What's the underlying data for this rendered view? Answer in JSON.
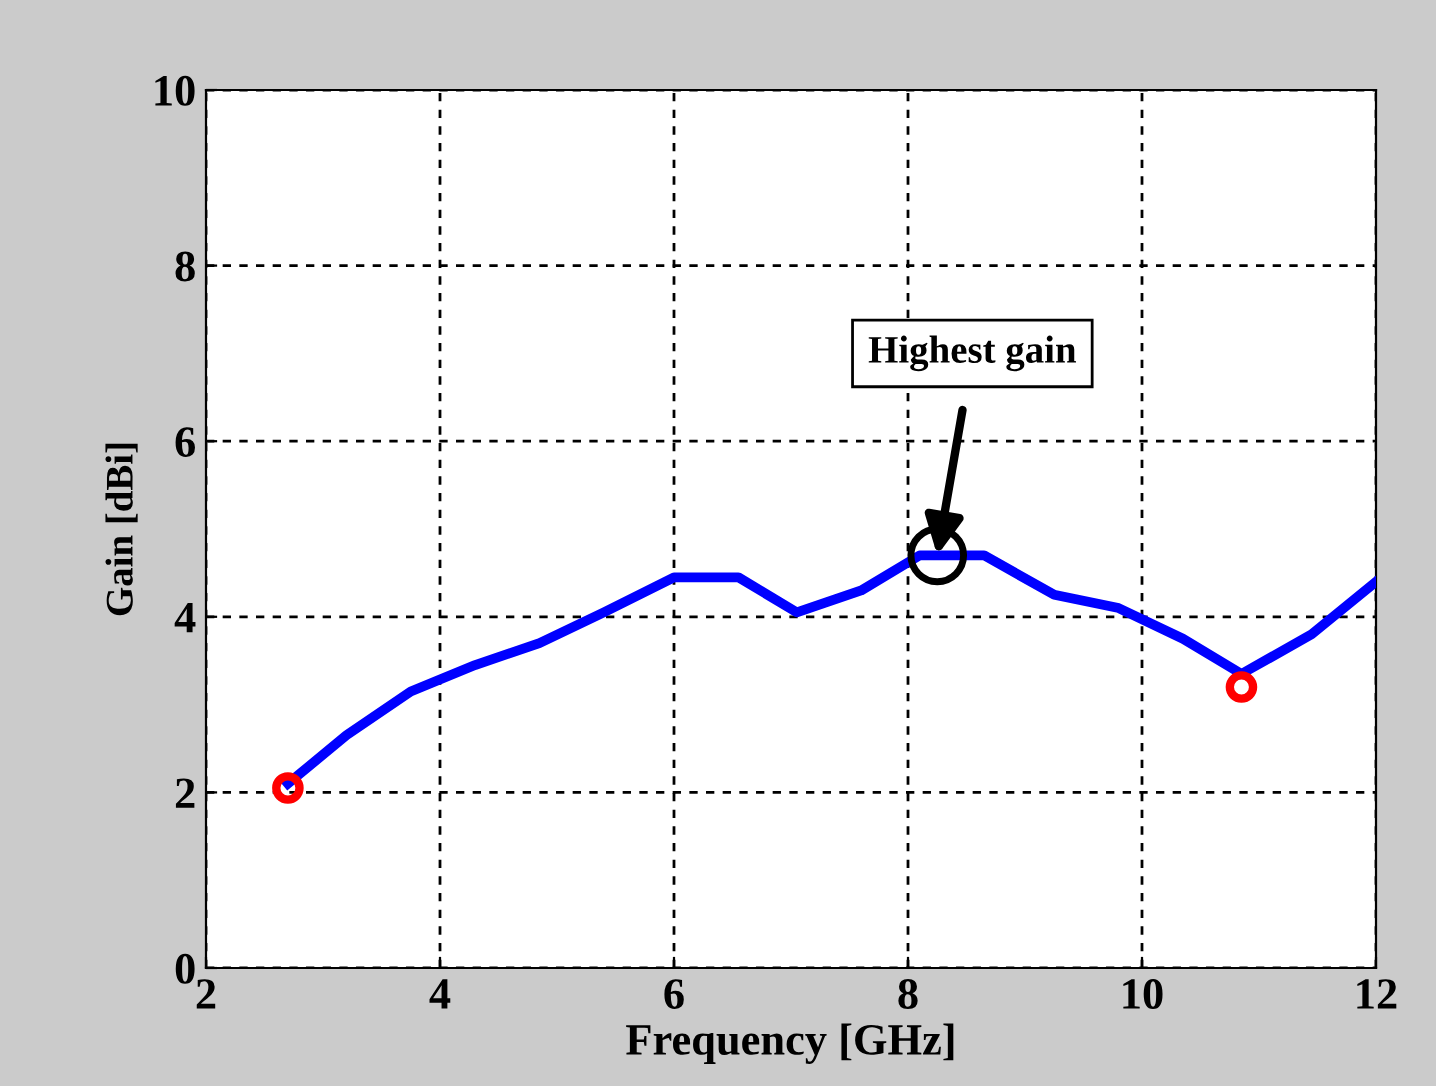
{
  "chart_data": {
    "type": "line",
    "xlabel": "Frequency [GHz]",
    "ylabel": "Gain [dBi]",
    "xlim": [
      2,
      12
    ],
    "xticks": [
      2,
      4,
      6,
      8,
      10,
      12
    ],
    "ylim": [
      0,
      10
    ],
    "yticks": [
      0,
      2,
      4,
      6,
      8,
      10
    ],
    "grid": true,
    "line_style": "solid",
    "series": [
      {
        "color": "#0000ff",
        "x": [
          2.7,
          3.2,
          3.75,
          4.3,
          4.85,
          5.4,
          6.0,
          6.55,
          7.05,
          7.6,
          8.1,
          8.65,
          9.25,
          9.8,
          10.35,
          10.85,
          11.45,
          12.0
        ],
        "values": [
          2.1,
          2.65,
          3.15,
          3.45,
          3.7,
          4.05,
          4.45,
          4.45,
          4.05,
          4.3,
          4.7,
          4.7,
          4.25,
          4.1,
          3.75,
          3.35,
          3.8,
          4.4
        ]
      },
      {
        "type": "scatter",
        "color": "#ff0000",
        "marker": "circle",
        "x": [
          2.7,
          10.85
        ],
        "values": [
          2.05,
          3.2
        ]
      }
    ],
    "annotations": [
      {
        "text": "Highest gain",
        "x": 8.25,
        "y": 4.7
      }
    ]
  }
}
